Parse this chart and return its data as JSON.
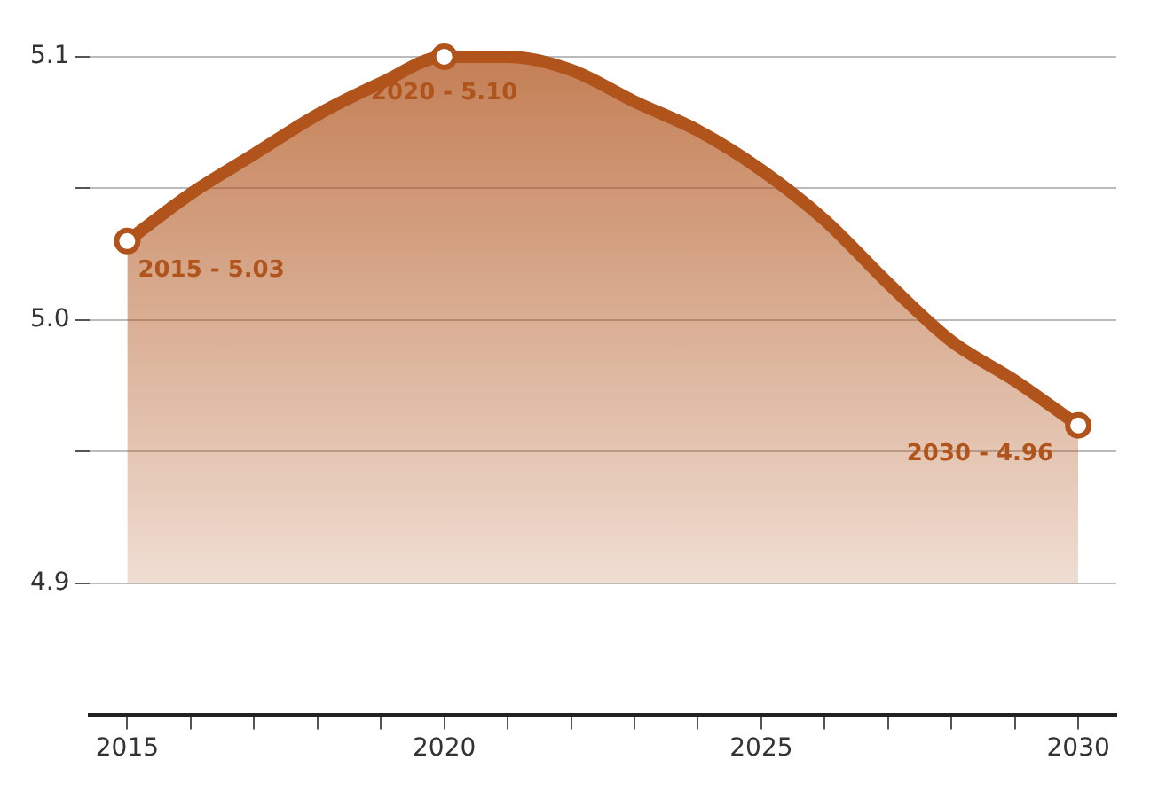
{
  "chart_data": {
    "type": "area",
    "x": [
      2015,
      2016,
      2017,
      2018,
      2019,
      2020,
      2021,
      2022,
      2023,
      2024,
      2025,
      2026,
      2027,
      2028,
      2029,
      2030
    ],
    "series": [
      {
        "color": "#b0541c",
        "values": [
          5.03,
          5.048,
          5.063,
          5.078,
          5.09,
          5.1,
          5.1,
          5.095,
          5.083,
          5.072,
          5.057,
          5.038,
          5.014,
          4.992,
          4.977,
          4.96
        ]
      }
    ],
    "annotations": [
      {
        "text": "2015 - 5.03",
        "x": 2015,
        "y": 5.03
      },
      {
        "text": "2020 - 5.10",
        "x": 2020,
        "y": 5.1
      },
      {
        "text": "2030 - 4.96",
        "x": 2030,
        "y": 4.96
      }
    ],
    "ylim": [
      4.85,
      5.1
    ],
    "yticks": [
      4.9,
      {
        "value": 4.95,
        "label": null
      },
      {
        "value": 5.0,
        "label": "5.0"
      },
      {
        "value": 5.05,
        "label": null
      },
      5.1
    ],
    "xlim": [
      2014.4,
      2030.6
    ],
    "xticks": [
      2015,
      {
        "value": 2016,
        "label": null
      },
      {
        "value": 2017,
        "label": null
      },
      {
        "value": 2018,
        "label": null
      },
      {
        "value": 2019,
        "label": null
      },
      2020,
      {
        "value": 2021,
        "label": null
      },
      {
        "value": 2022,
        "label": null
      },
      {
        "value": 2023,
        "label": null
      },
      {
        "value": 2024,
        "label": null
      },
      2025,
      {
        "value": 2026,
        "label": null
      },
      {
        "value": 2027,
        "label": null
      },
      {
        "value": 2028,
        "label": null
      },
      {
        "value": 2029,
        "label": null
      },
      2030
    ],
    "grid": "y",
    "legend": false
  }
}
